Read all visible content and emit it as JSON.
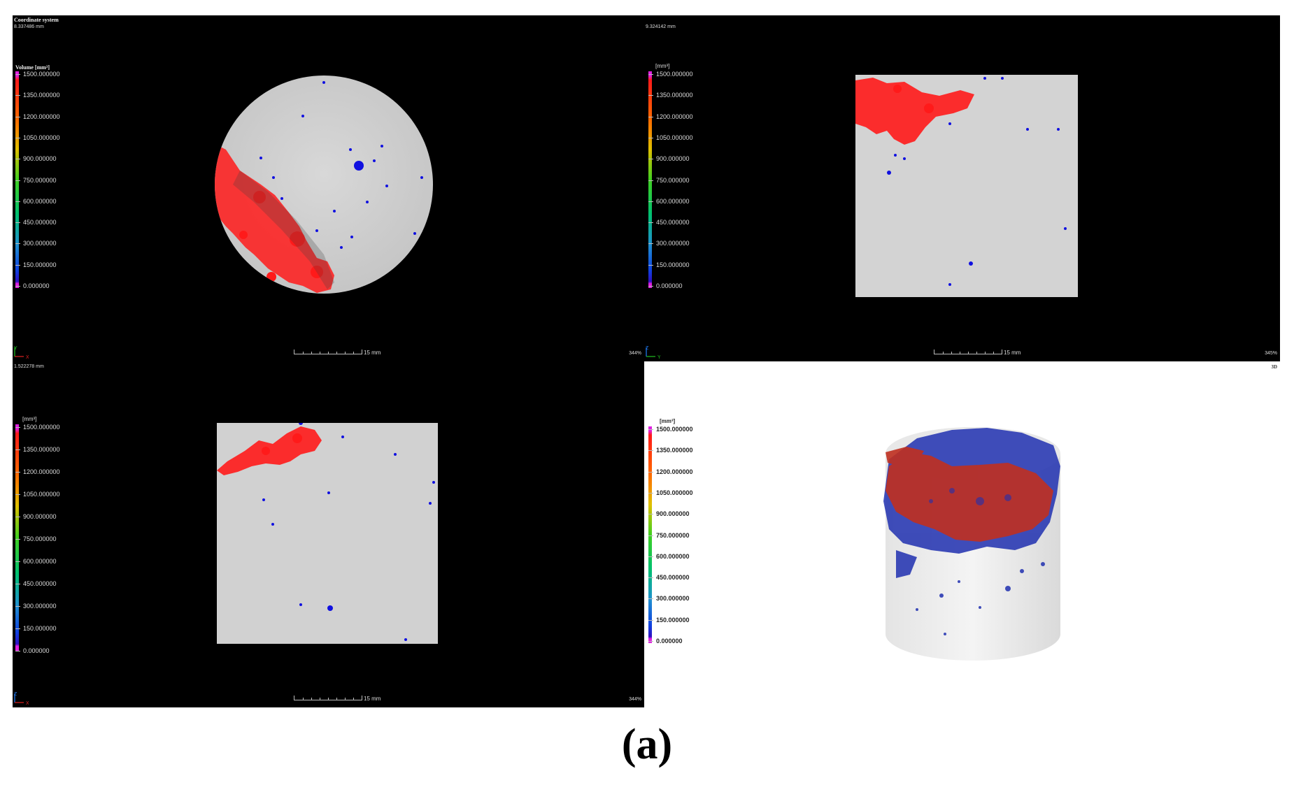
{
  "caption": "(a)",
  "views": {
    "top_left": {
      "title": "Coordinate system",
      "depth": "8.337486 mm",
      "legend_title": "Volume [mm³]",
      "scale": "15 mm",
      "zoom": "344%",
      "axis_x": "X",
      "axis_y": "Y"
    },
    "top_right": {
      "depth": "9.324142 mm",
      "legend_title": "[mm³]",
      "scale": "15 mm",
      "zoom": "345%",
      "axis_x": "Y",
      "axis_y": "Z"
    },
    "bottom_left": {
      "depth": "1.522278 mm",
      "legend_title": "[mm³]",
      "scale": "15 mm",
      "zoom": "344%",
      "axis_x": "X",
      "axis_y": "Z"
    },
    "bottom_right": {
      "label_3d": "3D",
      "legend_title": "[mm³]"
    }
  },
  "legend_labels": [
    "1500.000000",
    "1350.000000",
    "1200.000000",
    "1050.000000",
    "900.000000",
    "750.000000",
    "600.000000",
    "450.000000",
    "300.000000",
    "150.000000",
    "0.000000"
  ],
  "colors": {
    "background": "#000000",
    "specimen": "#cfcfcf",
    "large_pore": "#ff1a1a",
    "small_pore": "#1010e0",
    "render_blue": "#2030b0",
    "render_red": "#c03020"
  }
}
